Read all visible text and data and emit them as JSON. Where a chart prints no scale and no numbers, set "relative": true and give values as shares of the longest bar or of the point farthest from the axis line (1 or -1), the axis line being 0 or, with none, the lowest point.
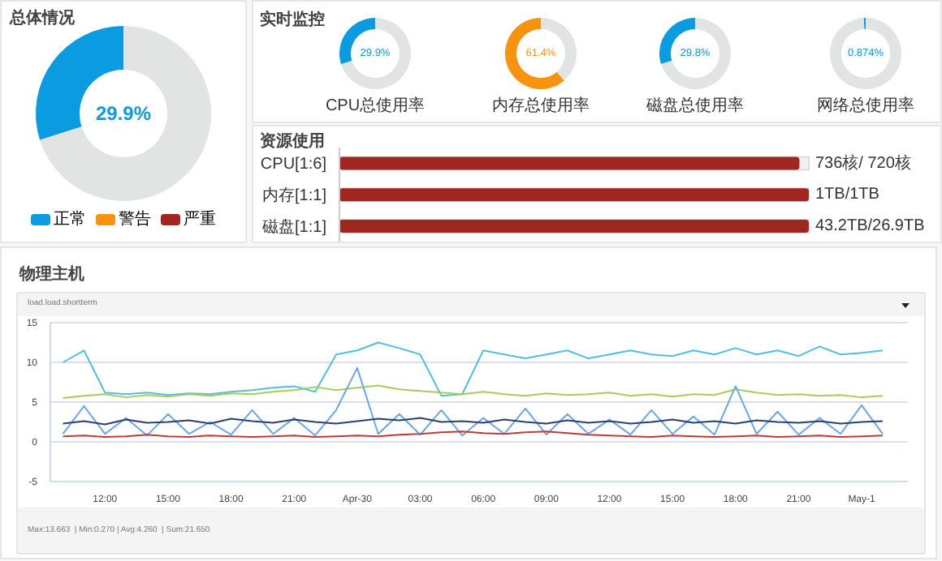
{
  "chart_data": [
    {
      "type": "donut",
      "title": "总体情况",
      "categories": [
        "正常",
        "警告",
        "严重",
        null
      ],
      "values": [
        29.9,
        0,
        0,
        70.1
      ],
      "colors": [
        "#0a9be0",
        "#f7930f",
        "#a0261f",
        "#e2e3e3"
      ],
      "annotations": [
        "29.9%"
      ],
      "legend": "bottom"
    },
    {
      "type": "donut",
      "title": "实时监控",
      "subtitle": "CPU总使用率",
      "categories": [
        null,
        null
      ],
      "values": [
        29.9,
        70.1
      ],
      "colors": [
        "#0a9be0",
        "#e2e3e3"
      ],
      "annotations": [
        "29.9%"
      ]
    },
    {
      "type": "donut",
      "subtitle": "内存总使用率",
      "categories": [
        null,
        null
      ],
      "values": [
        61.4,
        38.6
      ],
      "colors": [
        "#f7930f",
        "#e2e3e3"
      ],
      "annotations": [
        "61.4%"
      ]
    },
    {
      "type": "donut",
      "subtitle": "磁盘总使用率",
      "categories": [
        null,
        null
      ],
      "values": [
        29.8,
        70.2
      ],
      "colors": [
        "#0a9be0",
        "#e2e3e3"
      ],
      "annotations": [
        "29.8%"
      ]
    },
    {
      "type": "donut",
      "subtitle": "网络总使用率",
      "categories": [
        null,
        null
      ],
      "values": [
        0.874,
        99.126
      ],
      "colors": [
        "#0a9be0",
        "#e2e3e3"
      ],
      "annotations": [
        "0.874%"
      ]
    },
    {
      "type": "bar",
      "title": "资源使用",
      "orientation": "horizontal",
      "relative": true,
      "categories": [
        "CPU[1:6]",
        "内存[1:1]",
        "磁盘[1:1]"
      ],
      "values": [
        0.98,
        1,
        1
      ],
      "color": "#a0261f",
      "annotations": [
        "736核/ 720核",
        "1TB/1TB",
        "43.2TB/26.9TB"
      ]
    },
    {
      "type": "line",
      "title": "物理主机",
      "subtitle": "load.load.shortterm",
      "annotations": [
        "Max:13.663  | Min:0.270 | Avg:4.260  | Sum:21.650"
      ],
      "x": [
        "--04-29T10:00",
        "--04-29T11:00",
        "--04-29T12:00",
        "--04-29T13:00",
        "--04-29T14:00",
        "--04-29T15:00",
        "--04-29T16:00",
        "--04-29T17:00",
        "--04-29T18:00",
        "--04-29T19:00",
        "--04-29T20:00",
        "--04-29T21:00",
        "--04-29T22:00",
        "--04-29T23:00",
        "--04-30T00:00",
        "--04-30T01:00",
        "--04-30T02:00",
        "--04-30T03:00",
        "--04-30T04:00",
        "--04-30T05:00",
        "--04-30T06:00",
        "--04-30T07:00",
        "--04-30T08:00",
        "--04-30T09:00",
        "--04-30T10:00",
        "--04-30T11:00",
        "--04-30T12:00",
        "--04-30T13:00",
        "--04-30T14:00",
        "--04-30T15:00",
        "--04-30T16:00",
        "--04-30T17:00",
        "--04-30T18:00",
        "--04-30T19:00",
        "--04-30T20:00",
        "--04-30T21:00",
        "--04-30T22:00",
        "--04-30T23:00",
        "--05-01T00:00",
        "--05-01T01:00"
      ],
      "xlim": [
        "--04-29T09:24",
        "--05-01T02:12"
      ],
      "xticks": [
        {
          "value": "--04-29T12:00",
          "label": "12:00"
        },
        {
          "value": "--04-29T15:00",
          "label": "15:00"
        },
        {
          "value": "--04-29T18:00",
          "label": "18:00"
        },
        {
          "value": "--04-29T21:00",
          "label": "21:00"
        },
        {
          "value": "--04-30T00:00",
          "label": "Apr-30"
        },
        {
          "value": "--04-30T03:00",
          "label": "03:00"
        },
        {
          "value": "--04-30T06:00",
          "label": "06:00"
        },
        {
          "value": "--04-30T09:00",
          "label": "09:00"
        },
        {
          "value": "--04-30T12:00",
          "label": "12:00"
        },
        {
          "value": "--04-30T15:00",
          "label": "15:00"
        },
        {
          "value": "--04-30T18:00",
          "label": "18:00"
        },
        {
          "value": "--04-30T21:00",
          "label": "21:00"
        },
        {
          "value": "--05-01T00:00",
          "label": "May-1"
        }
      ],
      "ylim": [
        -5,
        15
      ],
      "yticks": [
        -5,
        0,
        5,
        10,
        15
      ],
      "grid": "y",
      "marker": "none",
      "line_style": "solid",
      "series": [
        {
          "color": "#4fc1dc",
          "values": [
            10,
            11.5,
            6.2,
            6,
            6.2,
            5.9,
            6.1,
            6,
            6.3,
            6.5,
            6.8,
            7,
            6.3,
            11,
            11.5,
            12.5,
            11.8,
            11,
            5.8,
            6,
            11.5,
            11,
            10.5,
            11,
            11.5,
            10.5,
            11,
            11.5,
            11,
            10.8,
            11.5,
            11,
            11.8,
            11,
            11.5,
            10.8,
            12,
            11,
            11.2,
            11.5
          ]
        },
        {
          "color": "#a8cc5a",
          "values": [
            5.5,
            5.8,
            6,
            5.6,
            5.9,
            5.7,
            6,
            5.8,
            6.1,
            6,
            6.3,
            6.5,
            6.9,
            6.5,
            6.8,
            7.1,
            6.6,
            6.4,
            6.2,
            6,
            6.3,
            6,
            5.8,
            6.1,
            5.9,
            6,
            6.2,
            5.8,
            6,
            5.7,
            6,
            5.9,
            6.6,
            6.2,
            5.9,
            6,
            5.8,
            5.9,
            5.6,
            5.8
          ]
        },
        {
          "color": "#6aa6ee",
          "values": [
            1,
            4.5,
            1,
            3,
            0.8,
            3.5,
            1,
            2.5,
            0.9,
            4,
            1,
            3,
            0.8,
            4,
            9.3,
            1,
            3.5,
            0.9,
            4,
            0.8,
            3,
            1,
            4.2,
            0.9,
            3.5,
            1,
            2.8,
            0.9,
            4,
            1,
            3.2,
            0.9,
            7,
            1,
            3.8,
            0.9,
            3,
            1,
            4.6,
            1
          ]
        },
        {
          "color": "#2a3f6b",
          "values": [
            2.3,
            2.6,
            2.2,
            2.8,
            2.4,
            2.5,
            2.7,
            2.3,
            2.9,
            2.6,
            2.4,
            2.8,
            2.5,
            2.3,
            2.6,
            2.9,
            2.7,
            3,
            2.5,
            2.6,
            2.4,
            2.8,
            2.5,
            2.3,
            2.7,
            2.4,
            2.6,
            2.3,
            2.5,
            2.8,
            2.4,
            2.6,
            2.3,
            2.7,
            2.5,
            2.4,
            2.6,
            2.3,
            2.5,
            2.6
          ]
        },
        {
          "color": "#c0393b",
          "values": [
            0.7,
            0.8,
            0.6,
            0.7,
            0.9,
            0.7,
            0.6,
            0.8,
            0.7,
            0.6,
            0.7,
            0.8,
            0.6,
            0.7,
            0.8,
            0.7,
            0.9,
            1,
            1.2,
            1.3,
            1.1,
            1,
            1.2,
            1.3,
            1.1,
            0.9,
            0.8,
            0.7,
            0.6,
            0.8,
            0.7,
            0.6,
            0.7,
            0.8,
            0.6,
            0.7,
            0.8,
            0.6,
            0.7,
            0.8
          ]
        }
      ]
    }
  ]
}
